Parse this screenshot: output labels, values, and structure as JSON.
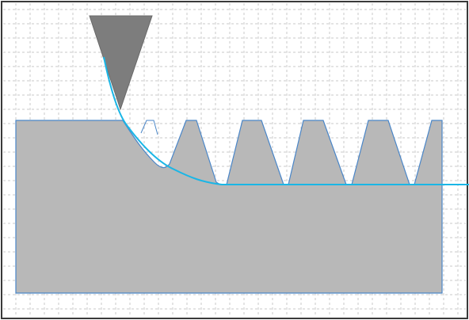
{
  "colors": {
    "background": "#ffffff",
    "frame": "#3a3a3a",
    "grid": "#c8c8c8",
    "workpiece_fill": "#b8b8b8",
    "workpiece_stroke": "#4a86c8",
    "tool_fill": "#7d7d7d",
    "toolpath": "#1ab6e6"
  },
  "icons": {
    "tool": "cutting-tool-icon"
  }
}
